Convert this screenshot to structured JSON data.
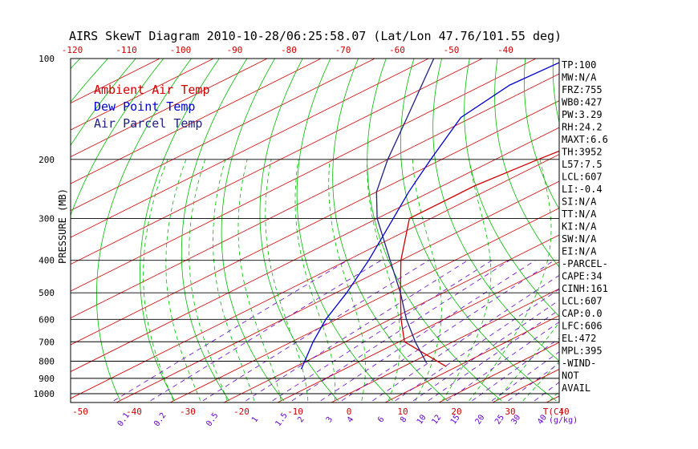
{
  "title": "AIRS SkewT Diagram 2010-10-28/06:25:58.07 (Lat/Lon 47.76/101.55 deg)",
  "colors": {
    "ambient": "#cc0000",
    "dewpoint": "#0000cc",
    "parcel": "#202080",
    "isotherm": "#cc0000",
    "dry_adiabat": "#00bb00",
    "moist_adiabat": "#00bb00",
    "mixing_ratio": "#6600cc",
    "isobar": "#000000"
  },
  "chart_data": {
    "type": "skewT",
    "ylabel": "PRESSURE (MB)",
    "xlabel_bottom": "T(C)",
    "xlabel_mixing": "(g/kg)",
    "pressure_range": [
      1000,
      100
    ],
    "pressure_ticks": [
      100,
      200,
      300,
      400,
      500,
      600,
      700,
      800,
      900,
      1000
    ],
    "isobars_drawn": [
      200,
      300,
      400,
      500,
      600,
      700,
      800,
      900,
      1000
    ],
    "bottom_temp_ticks": [
      -50,
      -40,
      -30,
      -20,
      -10,
      0,
      10,
      20,
      30,
      40
    ],
    "bottom_temp_range": [
      -50,
      40
    ],
    "top_temp_ticks": [
      -120,
      -110,
      -100,
      -90,
      -80,
      -70,
      -60,
      -50,
      -40
    ],
    "top_temp_range": [
      -120,
      -40
    ],
    "mixing_ratio_labels": [
      "0.1",
      "0.2",
      "0.5",
      "1",
      "1.5",
      "2",
      "3",
      "4",
      "6",
      "8",
      "10",
      "12",
      "15",
      "20",
      "25",
      "30",
      "40"
    ],
    "mixing_ratio_values": [
      0.1,
      0.2,
      0.5,
      1,
      1.5,
      2,
      3,
      4,
      6,
      8,
      10,
      12,
      15,
      20,
      25,
      30,
      40
    ],
    "legend": [
      {
        "label": "Ambient Air Temp",
        "color": "#cc0000"
      },
      {
        "label": "Dew Point Temp",
        "color": "#0000cc"
      },
      {
        "label": "Air Parcel Temp",
        "color": "#202080"
      }
    ],
    "series": [
      {
        "name": "Ambient Air Temp",
        "color": "#cc0000",
        "points": [
          [
            830,
            8
          ],
          [
            700,
            -9
          ],
          [
            600,
            -18
          ],
          [
            500,
            -28
          ],
          [
            400,
            -40
          ],
          [
            300,
            -54
          ],
          [
            260,
            -54
          ],
          [
            240,
            -54
          ],
          [
            200,
            -52
          ],
          [
            150,
            -48
          ],
          [
            100,
            -47
          ]
        ]
      },
      {
        "name": "Dew Point Temp",
        "color": "#0000cc",
        "points": [
          [
            845,
            -18
          ],
          [
            700,
            -26
          ],
          [
            600,
            -32
          ],
          [
            500,
            -38
          ],
          [
            400,
            -46
          ],
          [
            300,
            -57
          ],
          [
            250,
            -64
          ],
          [
            200,
            -72
          ],
          [
            150,
            -82
          ],
          [
            120,
            -85
          ],
          [
            100,
            -84
          ]
        ]
      },
      {
        "name": "Air Parcel Temp",
        "color": "#202080",
        "points": [
          [
            810,
            3
          ],
          [
            700,
            -7
          ],
          [
            600,
            -17
          ],
          [
            500,
            -28
          ],
          [
            400,
            -42
          ],
          [
            300,
            -60
          ],
          [
            250,
            -70
          ],
          [
            200,
            -80
          ],
          [
            150,
            -92
          ],
          [
            100,
            -109
          ]
        ]
      }
    ],
    "stats": [
      "TP:100",
      "MW:N/A",
      "FRZ:755",
      "WB0:427",
      "PW:3.29",
      "RH:24.2",
      "MAXT:6.6",
      "TH:3952",
      "L57:7.5",
      "LCL:607",
      "LI:-0.4",
      "SI:N/A",
      "TT:N/A",
      "KI:N/A",
      "SW:N/A",
      "EI:N/A",
      "-PARCEL-",
      "CAPE:34",
      "CINH:161",
      "LCL:607",
      "CAP:0.0",
      "LFC:606",
      "EL:472",
      "MPL:395",
      "-WIND-",
      "NOT",
      "AVAIL"
    ]
  }
}
